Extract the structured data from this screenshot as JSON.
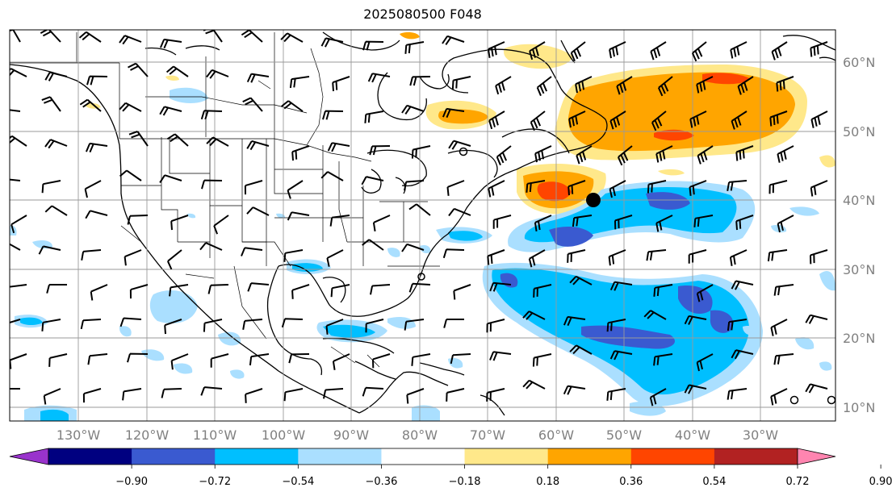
{
  "title": "2025080500 F048",
  "map": {
    "lon_range": [
      -138,
      -17
    ],
    "lat_range": [
      8,
      65
    ],
    "lat_labels": [
      "60°N",
      "50°N",
      "40°N",
      "30°N",
      "20°N",
      "10°N"
    ],
    "lat_values": [
      60,
      50,
      40,
      30,
      20,
      10
    ],
    "lon_labels": [
      "130°W",
      "120°W",
      "110°W",
      "100°W",
      "90°W",
      "80°W",
      "70°W",
      "60°W",
      "50°W",
      "40°W",
      "30°W"
    ],
    "lon_values": [
      -130,
      -120,
      -110,
      -100,
      -90,
      -80,
      -70,
      -60,
      -50,
      -40,
      -30
    ],
    "marker_center": {
      "lon": -55.0,
      "lat": 40.0
    }
  },
  "colorbar": {
    "tick_labels": [
      "−0.90",
      "−0.72",
      "−0.54",
      "−0.36",
      "−0.18",
      "0.18",
      "0.36",
      "0.54",
      "0.72",
      "0.90"
    ],
    "colors": [
      "#9933cc",
      "#000080",
      "#3a5ad0",
      "#00bfff",
      "#aadfff",
      "#ffffff",
      "#ffe88a",
      "#ffa500",
      "#ff4500",
      "#b22222",
      "#ff85b0"
    ]
  }
}
